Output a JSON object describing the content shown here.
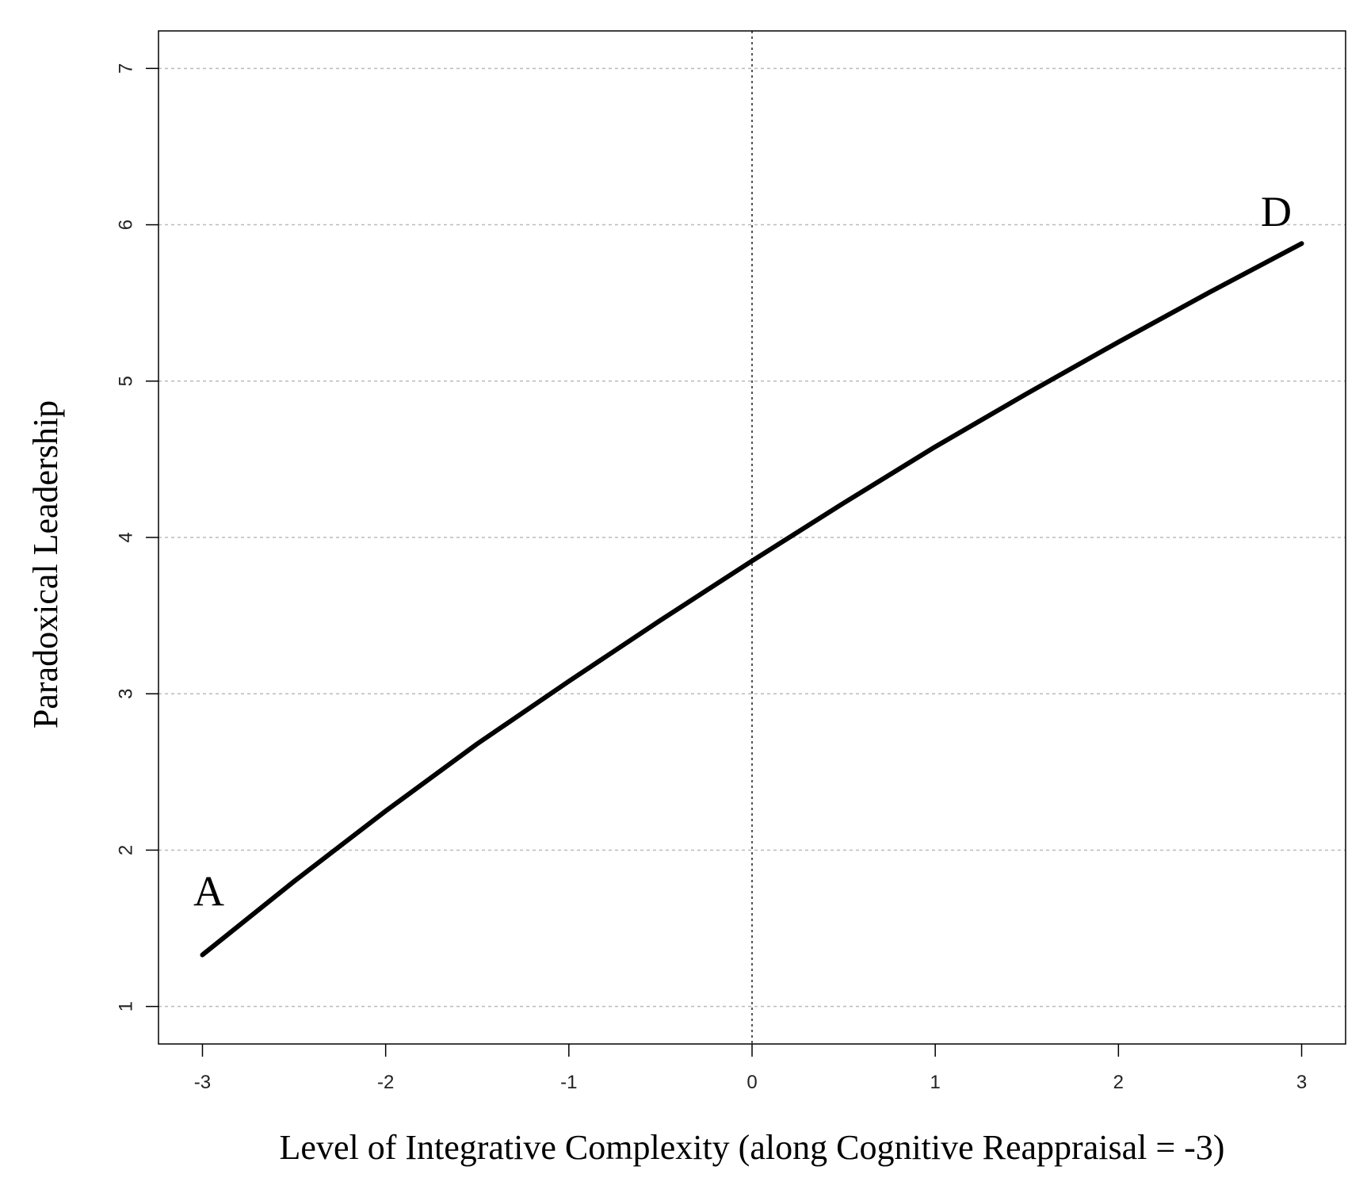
{
  "chart_data": {
    "type": "line",
    "x_label": "Level of Integrative Complexity (along Cognitive Reappraisal = -3)",
    "y_label": "Paradoxical Leadership",
    "x": [
      -3,
      -2.5,
      -2,
      -1.5,
      -1,
      -0.5,
      0,
      0.5,
      1,
      1.5,
      2,
      2.5,
      3
    ],
    "series": [
      {
        "color": "#000000",
        "values": [
          1.33,
          1.8,
          2.25,
          2.68,
          3.08,
          3.47,
          3.85,
          4.22,
          4.58,
          4.92,
          5.25,
          5.57,
          5.88
        ]
      }
    ],
    "annotations": [
      "A",
      "D"
    ],
    "xlim": [
      -3.24,
      3.24
    ],
    "ylim": [
      0.76,
      7.24
    ],
    "xticks": [
      -3,
      -2,
      -1,
      0,
      1,
      2,
      3
    ],
    "yticks": [
      1,
      2,
      3,
      4,
      5,
      6,
      7
    ],
    "vline": 0,
    "grid": true
  }
}
